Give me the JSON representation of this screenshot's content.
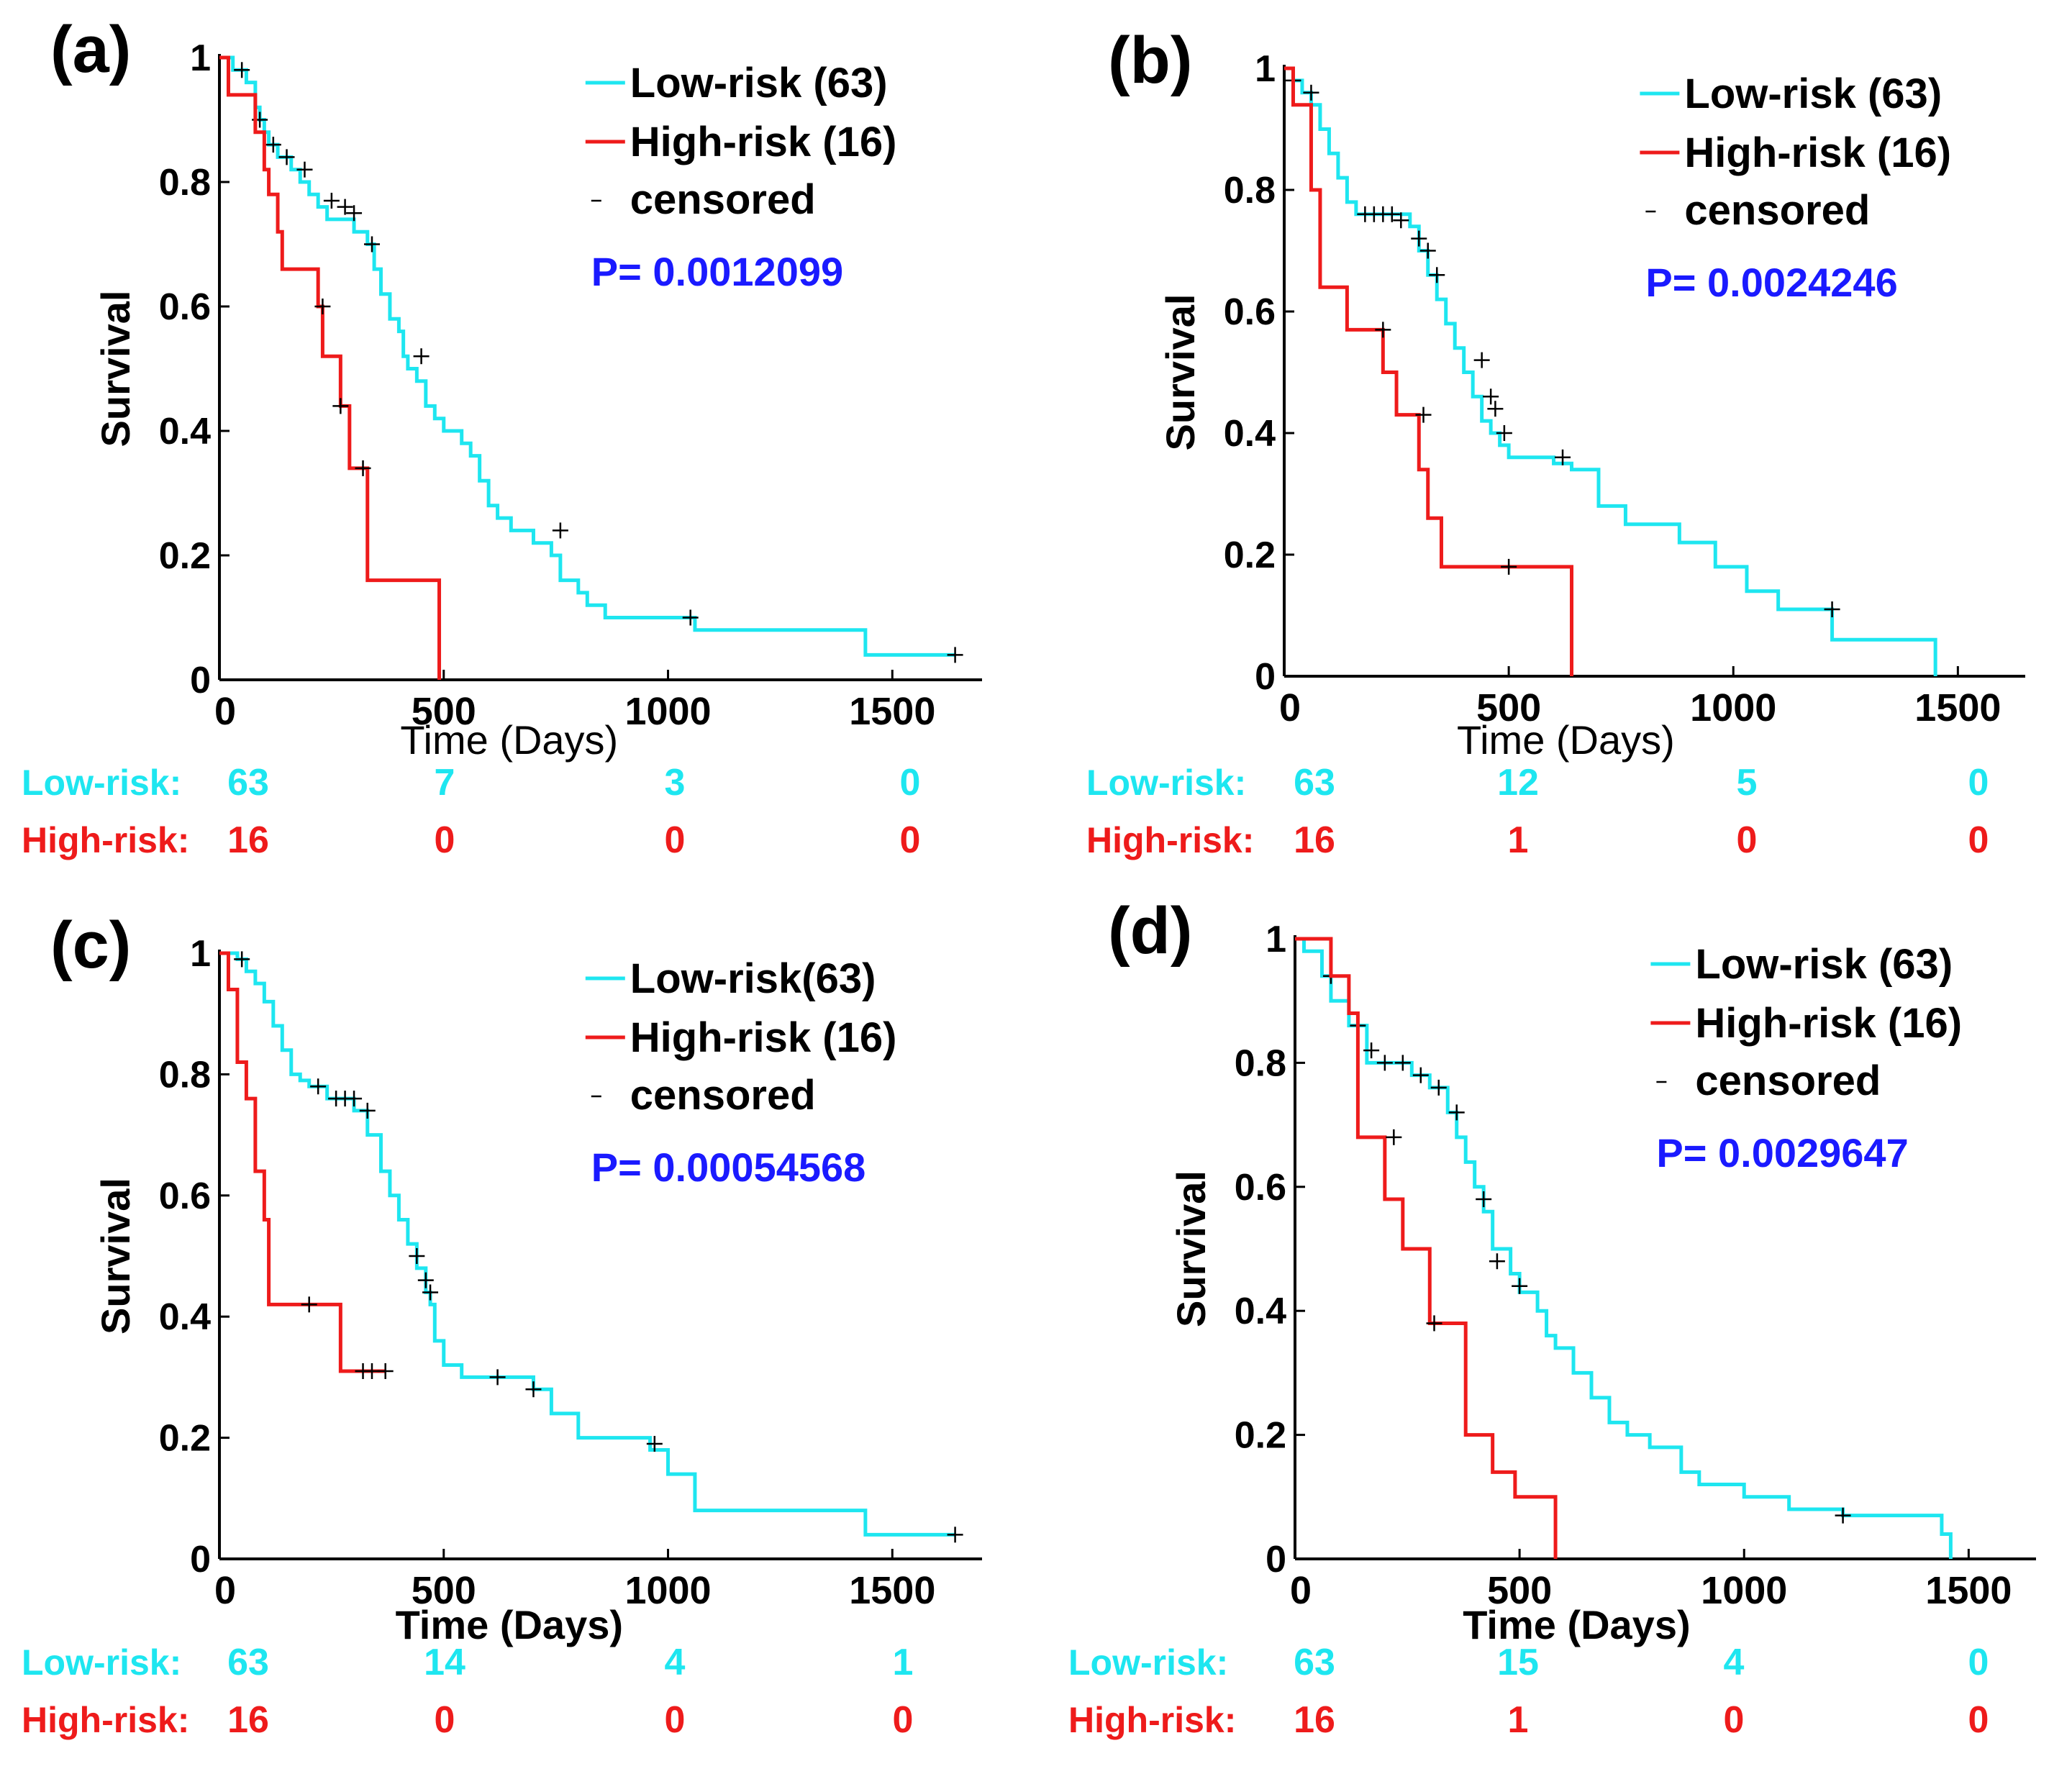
{
  "colors": {
    "low": "#1ee6f0",
    "high": "#ee1b1b",
    "pvalue": "#1a1aff",
    "axis": "#000000",
    "censor": "#000000"
  },
  "risk_labels": {
    "low": "Low-risk:",
    "high": "High-risk:"
  },
  "chart_data": [
    {
      "type": "line",
      "panel_label": "(a)",
      "ylabel": "Survival",
      "xlabel": "Time (Days)",
      "xlim": [
        0,
        1700
      ],
      "ylim": [
        0,
        1
      ],
      "xticks": [
        0,
        500,
        1000,
        1500
      ],
      "yticks": [
        0,
        0.2,
        0.4,
        0.6,
        0.8,
        1
      ],
      "ytick_labels": [
        "0",
        "0.2",
        "0.4",
        "0.6",
        "0.8",
        "1"
      ],
      "xtick_labels": [
        "0",
        "500",
        "1000",
        "1500"
      ],
      "legend": {
        "low": "Low-risk (63)",
        "high": "High-risk (16)",
        "censored": "censored",
        "pvalue": "P= 0.0012099"
      },
      "series": [
        {
          "name": "Low-risk",
          "key": "low",
          "x": [
            0,
            30,
            60,
            80,
            90,
            100,
            110,
            130,
            160,
            180,
            200,
            220,
            240,
            300,
            330,
            345,
            360,
            380,
            400,
            410,
            420,
            440,
            460,
            480,
            500,
            540,
            560,
            580,
            600,
            620,
            650,
            700,
            740,
            760,
            800,
            820,
            860,
            900,
            1000,
            1060,
            1100,
            1200,
            1300,
            1440,
            1640
          ],
          "y": [
            1,
            0.98,
            0.96,
            0.92,
            0.9,
            0.88,
            0.86,
            0.84,
            0.82,
            0.8,
            0.78,
            0.76,
            0.74,
            0.72,
            0.7,
            0.66,
            0.62,
            0.58,
            0.56,
            0.52,
            0.5,
            0.48,
            0.44,
            0.42,
            0.4,
            0.38,
            0.36,
            0.32,
            0.28,
            0.26,
            0.24,
            0.22,
            0.2,
            0.16,
            0.14,
            0.12,
            0.1,
            0.1,
            0.1,
            0.08,
            0.08,
            0.08,
            0.08,
            0.04,
            0.04
          ],
          "censored": [
            [
              50,
              0.98
            ],
            [
              90,
              0.9
            ],
            [
              120,
              0.86
            ],
            [
              150,
              0.84
            ],
            [
              190,
              0.82
            ],
            [
              250,
              0.77
            ],
            [
              280,
              0.76
            ],
            [
              300,
              0.75
            ],
            [
              340,
              0.7
            ],
            [
              450,
              0.52
            ],
            [
              760,
              0.24
            ],
            [
              1050,
              0.1
            ],
            [
              1640,
              0.04
            ]
          ]
        },
        {
          "name": "High-risk",
          "key": "high",
          "x": [
            0,
            20,
            80,
            100,
            110,
            130,
            140,
            220,
            230,
            270,
            290,
            330,
            380,
            480,
            490
          ],
          "y": [
            1,
            0.94,
            0.88,
            0.82,
            0.78,
            0.72,
            0.66,
            0.6,
            0.52,
            0.44,
            0.34,
            0.16,
            0.16,
            0.16,
            0
          ],
          "censored": [
            [
              230,
              0.6
            ],
            [
              270,
              0.44
            ],
            [
              320,
              0.34
            ]
          ]
        }
      ],
      "risk_table": {
        "low": [
          "63",
          "7",
          "3",
          "0"
        ],
        "high": [
          "16",
          "0",
          "0",
          "0"
        ]
      }
    },
    {
      "type": "line",
      "panel_label": "(b)",
      "ylabel": "Survival",
      "xlabel": "Time (Days)",
      "xlim": [
        0,
        1650
      ],
      "ylim": [
        0,
        1
      ],
      "xticks": [
        0,
        500,
        1000,
        1500
      ],
      "yticks": [
        0,
        0.2,
        0.4,
        0.6,
        0.8,
        1
      ],
      "ytick_labels": [
        "0",
        "0.2",
        "0.4",
        "0.6",
        "0.8",
        "1"
      ],
      "xtick_labels": [
        "0",
        "500",
        "1000",
        "1500"
      ],
      "legend": {
        "low": "Low-risk (63)",
        "high": "High-risk (16)",
        "censored": "censored",
        "pvalue": "P= 0.0024246"
      },
      "series": [
        {
          "name": "Low-risk",
          "key": "low",
          "x": [
            0,
            20,
            40,
            60,
            80,
            100,
            120,
            140,
            160,
            280,
            300,
            320,
            340,
            360,
            380,
            400,
            420,
            440,
            460,
            480,
            500,
            600,
            640,
            700,
            760,
            880,
            960,
            1030,
            1100,
            1200,
            1220,
            1440,
            1450
          ],
          "y": [
            1,
            0.98,
            0.96,
            0.94,
            0.9,
            0.86,
            0.82,
            0.78,
            0.76,
            0.74,
            0.7,
            0.66,
            0.62,
            0.58,
            0.54,
            0.5,
            0.46,
            0.42,
            0.4,
            0.38,
            0.36,
            0.35,
            0.34,
            0.28,
            0.25,
            0.22,
            0.18,
            0.14,
            0.11,
            0.11,
            0.06,
            0.06,
            0
          ],
          "censored": [
            [
              20,
              0.98
            ],
            [
              60,
              0.96
            ],
            [
              180,
              0.76
            ],
            [
              200,
              0.76
            ],
            [
              220,
              0.76
            ],
            [
              240,
              0.76
            ],
            [
              260,
              0.75
            ],
            [
              300,
              0.72
            ],
            [
              320,
              0.7
            ],
            [
              340,
              0.66
            ],
            [
              440,
              0.52
            ],
            [
              460,
              0.46
            ],
            [
              470,
              0.44
            ],
            [
              490,
              0.4
            ],
            [
              620,
              0.36
            ],
            [
              1220,
              0.11
            ]
          ]
        },
        {
          "name": "High-risk",
          "key": "high",
          "x": [
            0,
            20,
            60,
            80,
            140,
            220,
            250,
            300,
            320,
            350,
            400,
            600,
            640
          ],
          "y": [
            1,
            0.94,
            0.8,
            0.64,
            0.57,
            0.5,
            0.43,
            0.34,
            0.26,
            0.18,
            0.18,
            0.18,
            0
          ],
          "censored": [
            [
              220,
              0.57
            ],
            [
              310,
              0.43
            ],
            [
              500,
              0.18
            ]
          ]
        }
      ],
      "risk_table": {
        "low": [
          "63",
          "12",
          "5",
          "0"
        ],
        "high": [
          "16",
          "1",
          "0",
          "0"
        ]
      }
    },
    {
      "type": "line",
      "panel_label": "(c)",
      "ylabel": "Survival",
      "xlabel": "Time (Days)",
      "xlim": [
        0,
        1700
      ],
      "ylim": [
        0,
        1
      ],
      "xticks": [
        0,
        500,
        1000,
        1500
      ],
      "yticks": [
        0,
        0.2,
        0.4,
        0.6,
        0.8,
        1
      ],
      "ytick_labels": [
        "0",
        "0.2",
        "0.4",
        "0.6",
        "0.8",
        "1"
      ],
      "xtick_labels": [
        "0",
        "500",
        "1000",
        "1500"
      ],
      "legend": {
        "low": "Low-risk(63)",
        "high": "High-risk (16)",
        "censored": "censored",
        "pvalue": "P= 0.00054568"
      },
      "series": [
        {
          "name": "Low-risk",
          "key": "low",
          "x": [
            0,
            40,
            60,
            80,
            100,
            120,
            140,
            160,
            180,
            200,
            240,
            300,
            330,
            360,
            380,
            400,
            420,
            440,
            460,
            470,
            480,
            500,
            540,
            700,
            740,
            800,
            960,
            1000,
            1060,
            1440,
            1640
          ],
          "y": [
            1,
            0.99,
            0.97,
            0.95,
            0.92,
            0.88,
            0.84,
            0.8,
            0.79,
            0.78,
            0.76,
            0.74,
            0.7,
            0.64,
            0.6,
            0.56,
            0.52,
            0.48,
            0.44,
            0.42,
            0.36,
            0.32,
            0.3,
            0.28,
            0.24,
            0.2,
            0.18,
            0.14,
            0.08,
            0.04,
            0.04
          ],
          "censored": [
            [
              50,
              0.99
            ],
            [
              220,
              0.78
            ],
            [
              260,
              0.76
            ],
            [
              280,
              0.76
            ],
            [
              300,
              0.76
            ],
            [
              330,
              0.74
            ],
            [
              440,
              0.5
            ],
            [
              460,
              0.46
            ],
            [
              470,
              0.44
            ],
            [
              620,
              0.3
            ],
            [
              700,
              0.28
            ],
            [
              970,
              0.19
            ],
            [
              1640,
              0.04
            ]
          ]
        },
        {
          "name": "High-risk",
          "key": "high",
          "x": [
            0,
            20,
            40,
            60,
            80,
            100,
            110,
            180,
            250,
            270,
            370
          ],
          "y": [
            1,
            0.94,
            0.82,
            0.76,
            0.64,
            0.56,
            0.42,
            0.42,
            0.42,
            0.31,
            0.31
          ],
          "censored": [
            [
              200,
              0.42
            ],
            [
              320,
              0.31
            ],
            [
              340,
              0.31
            ],
            [
              370,
              0.31
            ]
          ]
        }
      ],
      "risk_table": {
        "low": [
          "63",
          "14",
          "4",
          "1"
        ],
        "high": [
          "16",
          "0",
          "0",
          "0"
        ]
      }
    },
    {
      "type": "line",
      "panel_label": "(d)",
      "ylabel": "Survival",
      "xlabel": "Time (Days)",
      "xlim": [
        0,
        1650
      ],
      "ylim": [
        0,
        1
      ],
      "xticks": [
        0,
        500,
        1000,
        1500
      ],
      "yticks": [
        0,
        0.2,
        0.4,
        0.6,
        0.8,
        1
      ],
      "ytick_labels": [
        "0",
        "0.2",
        "0.4",
        "0.6",
        "0.8",
        "1"
      ],
      "xtick_labels": [
        "0",
        "500",
        "1000",
        "1500"
      ],
      "legend": {
        "low": "Low-risk (63)",
        "high": "High-risk (16)",
        "censored": "censored",
        "pvalue": "P= 0.0029647"
      },
      "series": [
        {
          "name": "Low-risk",
          "key": "low",
          "x": [
            0,
            20,
            60,
            80,
            120,
            160,
            260,
            300,
            340,
            360,
            380,
            400,
            420,
            440,
            480,
            500,
            540,
            560,
            580,
            620,
            660,
            700,
            740,
            790,
            860,
            900,
            1000,
            1100,
            1220,
            1440,
            1460
          ],
          "y": [
            1,
            0.98,
            0.94,
            0.9,
            0.86,
            0.8,
            0.78,
            0.76,
            0.72,
            0.68,
            0.64,
            0.6,
            0.56,
            0.5,
            0.46,
            0.43,
            0.4,
            0.36,
            0.34,
            0.3,
            0.26,
            0.22,
            0.2,
            0.18,
            0.14,
            0.12,
            0.1,
            0.08,
            0.07,
            0.04,
            0
          ],
          "censored": [
            [
              80,
              0.94
            ],
            [
              140,
              0.86
            ],
            [
              170,
              0.82
            ],
            [
              200,
              0.8
            ],
            [
              240,
              0.8
            ],
            [
              280,
              0.78
            ],
            [
              320,
              0.76
            ],
            [
              360,
              0.72
            ],
            [
              420,
              0.58
            ],
            [
              450,
              0.48
            ],
            [
              500,
              0.44
            ],
            [
              1220,
              0.07
            ]
          ]
        },
        {
          "name": "High-risk",
          "key": "high",
          "x": [
            0,
            80,
            120,
            140,
            200,
            240,
            300,
            380,
            440,
            490,
            580
          ],
          "y": [
            1,
            0.94,
            0.88,
            0.68,
            0.58,
            0.5,
            0.38,
            0.2,
            0.14,
            0.1,
            0
          ],
          "censored": [
            [
              220,
              0.68
            ],
            [
              310,
              0.38
            ]
          ]
        }
      ],
      "risk_table": {
        "low": [
          "63",
          "15",
          "4",
          "0"
        ],
        "high": [
          "16",
          "1",
          "0",
          "0"
        ]
      }
    }
  ]
}
